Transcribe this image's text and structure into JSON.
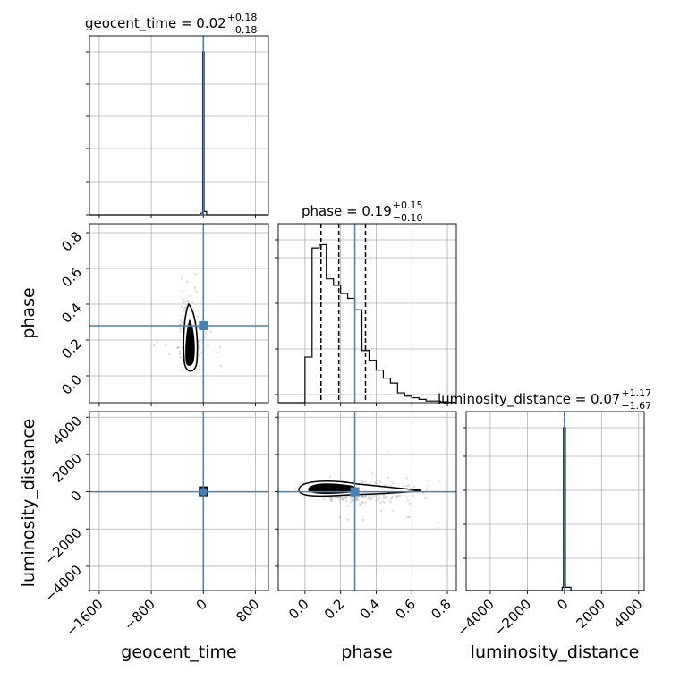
{
  "chart_data": {
    "type": "corner",
    "parameters": [
      "geocent_time",
      "phase",
      "luminosity_distance"
    ],
    "titles": [
      {
        "prefix": "geocent_time = 0.02",
        "plus": "+0.18",
        "minus": "−0.18"
      },
      {
        "prefix": "phase = 0.19",
        "plus": "+0.15",
        "minus": "−0.10"
      },
      {
        "prefix": "luminosity_distance = 0.07",
        "plus": "+1.17",
        "minus": "−1.67"
      }
    ],
    "truths": [
      0,
      0.28,
      0
    ],
    "ranges": [
      [
        -1750,
        1000
      ],
      [
        -0.15,
        0.85
      ],
      [
        -5300,
        4300
      ]
    ],
    "ticks": [
      {
        "values": [
          -1600,
          -800,
          0,
          800
        ],
        "labels": [
          "−1600",
          "−800",
          "0",
          "800"
        ]
      },
      {
        "values": [
          0.0,
          0.2,
          0.4,
          0.6,
          0.8
        ],
        "labels": [
          "0.0",
          "0.2",
          "0.4",
          "0.6",
          "0.8"
        ]
      },
      {
        "values": [
          -4000,
          -2000,
          0,
          2000,
          4000
        ],
        "labels": [
          "−4000",
          "−2000",
          "0",
          "2000",
          "4000"
        ]
      }
    ],
    "hist_geocent_time": {
      "edges": [
        -50,
        -10,
        10,
        50
      ],
      "heights": [
        0.01,
        1.0,
        0.02
      ],
      "quantiles": [
        -0.16,
        0.02,
        0.2
      ]
    },
    "hist_phase": {
      "edges": [
        0,
        0.04,
        0.08,
        0.12,
        0.16,
        0.2,
        0.24,
        0.28,
        0.32,
        0.36,
        0.4,
        0.44,
        0.48,
        0.52,
        0.56,
        0.6,
        0.64,
        0.68,
        0.72,
        0.76,
        0.8,
        0.84
      ],
      "heights": [
        0.28,
        0.95,
        0.97,
        0.76,
        0.72,
        0.67,
        0.64,
        0.57,
        0.32,
        0.26,
        0.2,
        0.15,
        0.12,
        0.06,
        0.04,
        0.03,
        0.02,
        0.01,
        0.01,
        0.005,
        0.003
      ],
      "quantiles": [
        0.09,
        0.19,
        0.34
      ]
    },
    "hist_luminosity_distance": {
      "edges": [
        -120,
        -50,
        50,
        350
      ],
      "heights": [
        0.02,
        1.0,
        0.02
      ],
      "quantiles": [
        -1.6,
        0.07,
        1.24
      ]
    },
    "grid": true
  }
}
